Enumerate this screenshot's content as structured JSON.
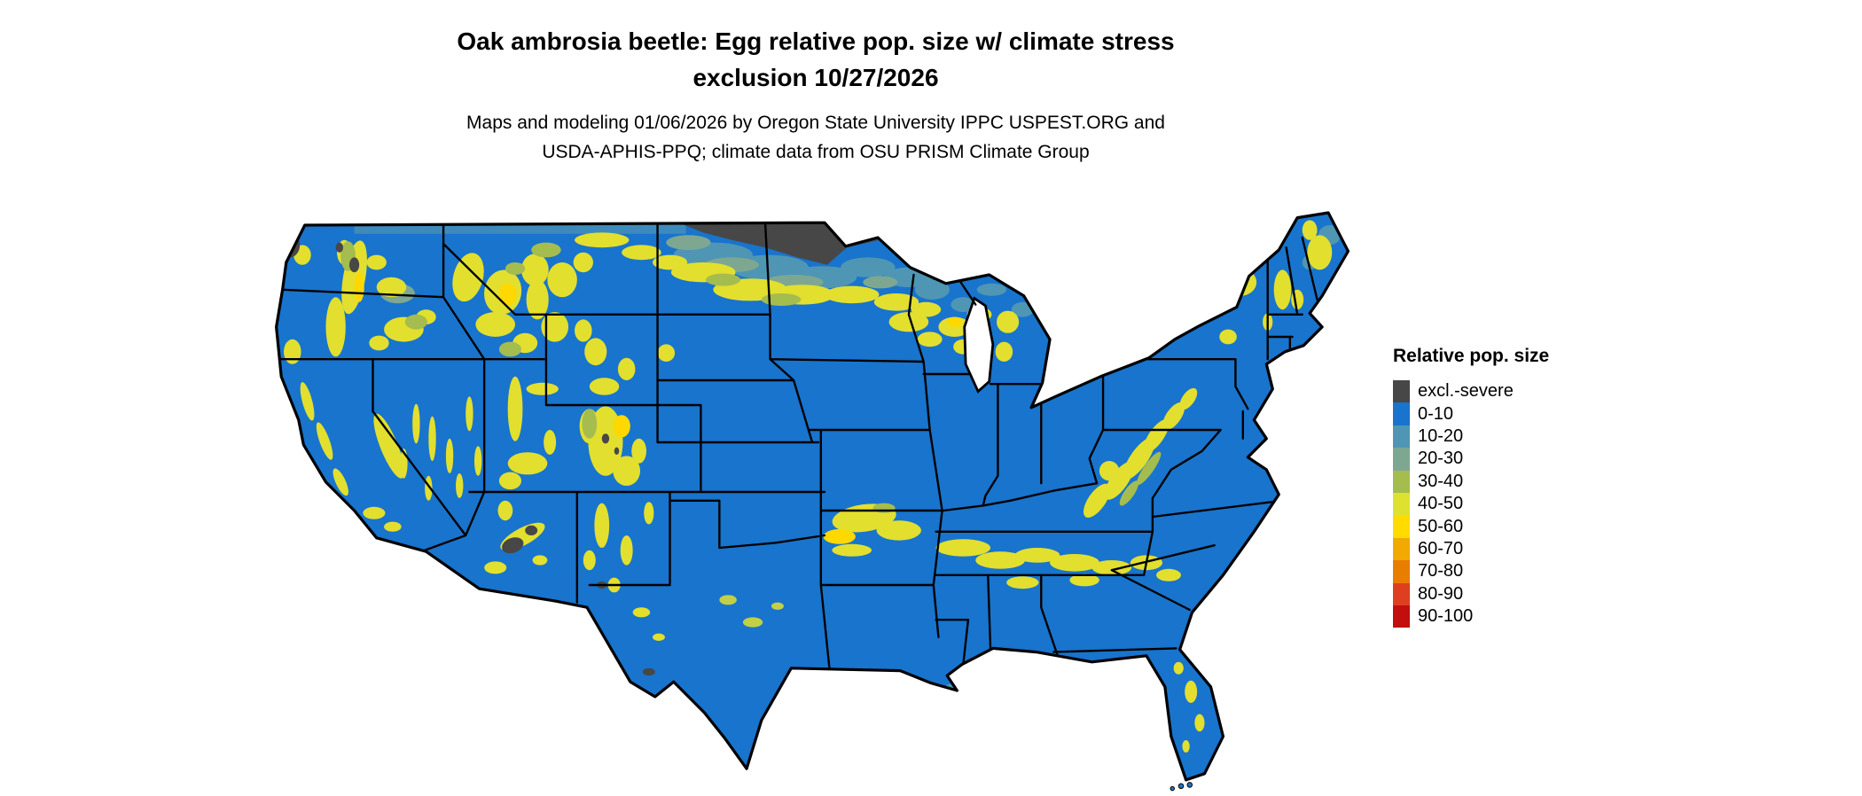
{
  "title": {
    "line1": "Oak ambrosia beetle: Egg relative pop. size w/ climate stress",
    "line2": "exclusion 10/27/2026"
  },
  "subtitle": {
    "line1": "Maps and modeling 01/06/2026 by Oregon State University IPPC USPEST.ORG and",
    "line2": "USDA-APHIS-PPQ; climate data from OSU PRISM Climate Group"
  },
  "map": {
    "base_color": "#1874CD",
    "exclusion_color": "#474747",
    "border_color": "#000000",
    "background_color": "#FFFFFF"
  },
  "legend": {
    "title": "Relative pop. size",
    "items": [
      {
        "label": "excl.-severe",
        "color": "#474747"
      },
      {
        "label": "0-10",
        "color": "#1874CD"
      },
      {
        "label": "10-20",
        "color": "#4E96B4"
      },
      {
        "label": "20-30",
        "color": "#7EA791"
      },
      {
        "label": "30-40",
        "color": "#A5BC4E"
      },
      {
        "label": "40-50",
        "color": "#DEE12F"
      },
      {
        "label": "50-60",
        "color": "#FFDB00"
      },
      {
        "label": "60-70",
        "color": "#F2A900"
      },
      {
        "label": "70-80",
        "color": "#E77E00"
      },
      {
        "label": "80-90",
        "color": "#DE3F1E"
      },
      {
        "label": "90-100",
        "color": "#C30E0E"
      }
    ]
  }
}
